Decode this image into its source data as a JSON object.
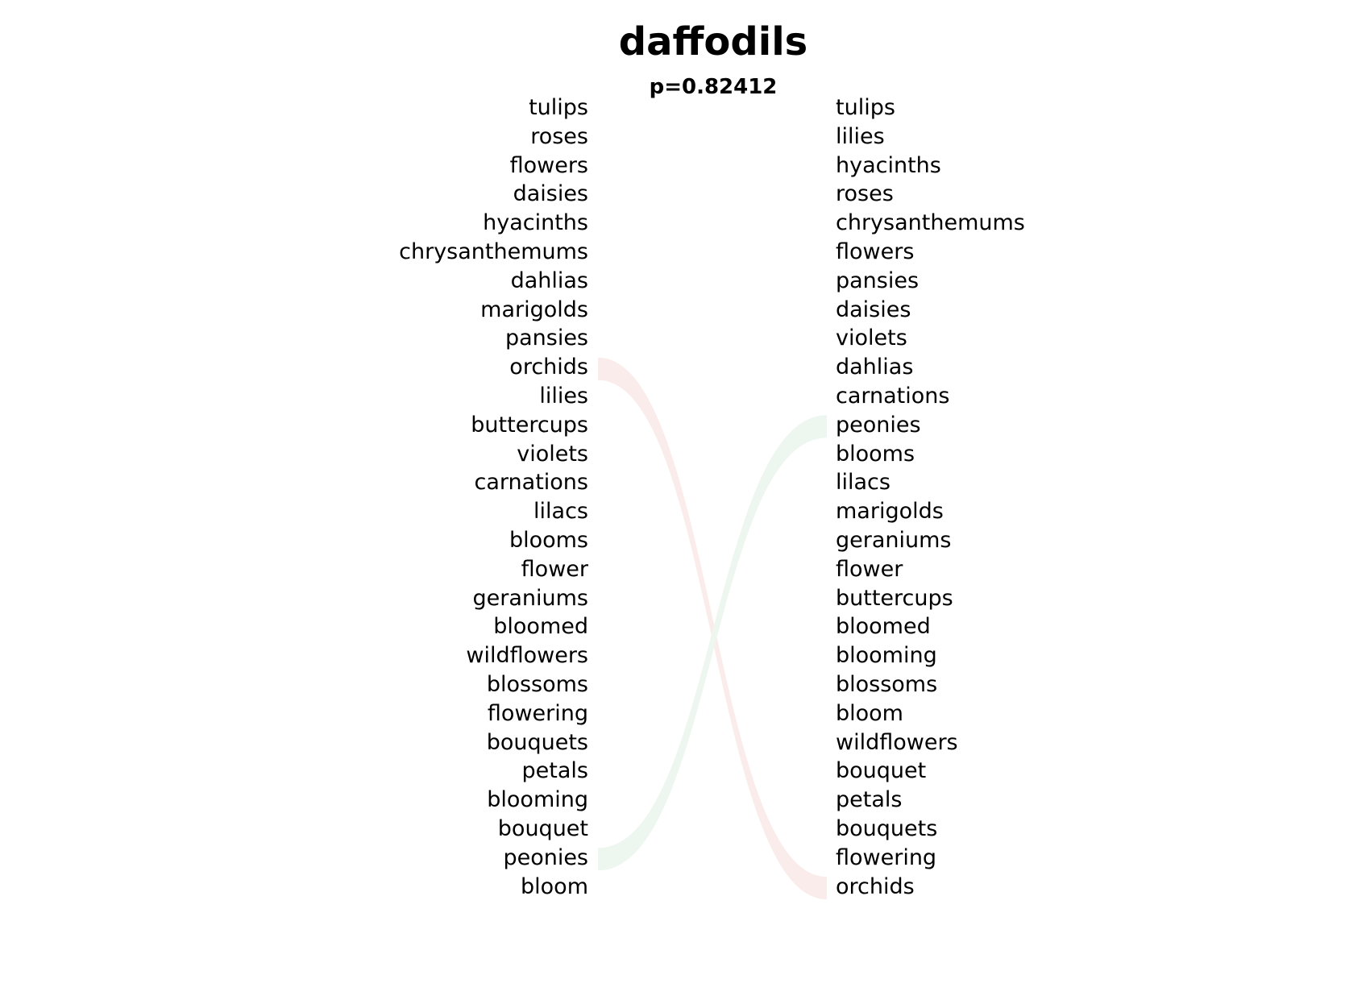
{
  "title": "daffodils",
  "subtitle": "p=0.82412",
  "left_list": [
    "tulips",
    "roses",
    "flowers",
    "daisies",
    "hyacinths",
    "chrysanthemums",
    "dahlias",
    "marigolds",
    "pansies",
    "orchids",
    "lilies",
    "buttercups",
    "violets",
    "carnations",
    "lilacs",
    "blooms",
    "flower",
    "geraniums",
    "bloomed",
    "wildflowers",
    "blossoms",
    "flowering",
    "bouquets",
    "petals",
    "blooming",
    "bouquet",
    "peonies",
    "bloom"
  ],
  "right_list": [
    "tulips",
    "lilies",
    "hyacinths",
    "roses",
    "chrysanthemums",
    "flowers",
    "pansies",
    "daisies",
    "violets",
    "dahlias",
    "carnations",
    "peonies",
    "blooms",
    "lilacs",
    "marigolds",
    "geraniums",
    "flower",
    "buttercups",
    "bloomed",
    "blooming",
    "blossoms",
    "bloom",
    "wildflowers",
    "bouquet",
    "petals",
    "bouquets",
    "flowering",
    "orchids"
  ],
  "links": [
    {
      "left": "orchids",
      "right": "orchids",
      "color": "#fbecec"
    },
    {
      "left": "peonies",
      "right": "peonies",
      "color": "#edf6ef"
    }
  ]
}
